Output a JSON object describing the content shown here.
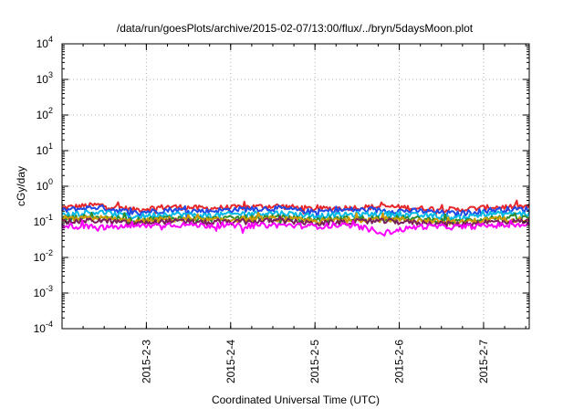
{
  "chart_data": {
    "type": "line",
    "title": "/data/run/goesPlots/archive/2015-02-07/13:00/flux/../bryn/5daysMoon.plot",
    "xlabel": "Coordinated Universal Time (UTC)",
    "ylabel": "cGy/day",
    "y_scale": "log",
    "ylim": [
      0.0001,
      10000
    ],
    "y_ticks": [
      {
        "base": "10",
        "exp": "4",
        "value": 10000
      },
      {
        "base": "10",
        "exp": "3",
        "value": 1000
      },
      {
        "base": "10",
        "exp": "2",
        "value": 100
      },
      {
        "base": "10",
        "exp": "1",
        "value": 10
      },
      {
        "base": "10",
        "exp": "0",
        "value": 1
      },
      {
        "base": "10",
        "exp": "-1",
        "value": 0.1
      },
      {
        "base": "10",
        "exp": "-2",
        "value": 0.01
      },
      {
        "base": "10",
        "exp": "-3",
        "value": 0.001
      },
      {
        "base": "10",
        "exp": "-4",
        "value": 0.0001
      }
    ],
    "xlim": [
      "2015-02-02",
      "2015-02-07 13:00"
    ],
    "x_ticks": [
      "2015-2-3",
      "2015-2-4",
      "2015-2-5",
      "2015-2-6",
      "2015-2-7"
    ],
    "grid": true,
    "series": [
      {
        "color": "#e8272a",
        "level": 0.25,
        "values": [
          0.25,
          0.3,
          0.22,
          0.27,
          0.24,
          0.26,
          0.28,
          0.23,
          0.25,
          0.27,
          0.24,
          0.22,
          0.26,
          0.27
        ]
      },
      {
        "color": "#1f48e6",
        "level": 0.21,
        "values": [
          0.21,
          0.26,
          0.18,
          0.22,
          0.2,
          0.23,
          0.24,
          0.19,
          0.22,
          0.21,
          0.2,
          0.17,
          0.22,
          0.23
        ]
      },
      {
        "color": "#00b8e6",
        "level": 0.16,
        "values": [
          0.16,
          0.19,
          0.14,
          0.17,
          0.15,
          0.17,
          0.18,
          0.15,
          0.16,
          0.17,
          0.15,
          0.13,
          0.17,
          0.17
        ]
      },
      {
        "color": "#2e8b2e",
        "level": 0.125,
        "values": [
          0.125,
          0.14,
          0.11,
          0.13,
          0.12,
          0.13,
          0.135,
          0.115,
          0.125,
          0.13,
          0.12,
          0.1,
          0.13,
          0.13
        ]
      },
      {
        "color": "#cf9a00",
        "level": 0.115,
        "values": [
          0.115,
          0.13,
          0.1,
          0.12,
          0.11,
          0.12,
          0.125,
          0.105,
          0.115,
          0.12,
          0.11,
          0.095,
          0.12,
          0.12
        ]
      },
      {
        "color": "#7a1f5c",
        "level": 0.1,
        "values": [
          0.1,
          0.11,
          0.09,
          0.105,
          0.095,
          0.1,
          0.11,
          0.09,
          0.1,
          0.105,
          0.095,
          0.085,
          0.1,
          0.105
        ]
      },
      {
        "color": "#ff00ff",
        "level": 0.08,
        "values": [
          0.08,
          0.07,
          0.075,
          0.085,
          0.08,
          0.078,
          0.082,
          0.076,
          0.08,
          0.05,
          0.075,
          0.072,
          0.08,
          0.082
        ]
      }
    ]
  }
}
